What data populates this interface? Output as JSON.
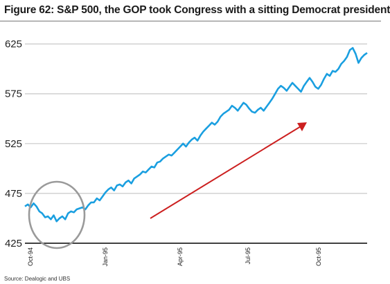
{
  "title": "Figure 62: S&P 500,  the GOP took Congress with a sitting Democrat president",
  "source": "Source:  Dealogic and UBS",
  "colors": {
    "line": "#1a9fe0",
    "grid": "#c8c8c8",
    "axis": "#000000",
    "arrow": "#cc1f1f",
    "circle": "#9a9a9a"
  },
  "chart_data": {
    "type": "line",
    "title": "Figure 62: S&P 500,  the GOP took Congress with a sitting Democrat president",
    "xlabel": "",
    "ylabel": "",
    "x_tick_labels": [
      "Oct-94",
      "Jan-95",
      "Apr-95",
      "Jul-95",
      "Oct-95"
    ],
    "y_ticks": [
      425,
      475,
      525,
      575,
      625
    ],
    "ylim": [
      425,
      640
    ],
    "grid": true,
    "series": [
      {
        "values": [
          462,
          464,
          461,
          465,
          462,
          457,
          455,
          451,
          452,
          449,
          453,
          447,
          450,
          452,
          449,
          455,
          457,
          456,
          459,
          460,
          461,
          459,
          463,
          466,
          466,
          470,
          468,
          472,
          476,
          479,
          481,
          478,
          483,
          484,
          482,
          486,
          488,
          485,
          490,
          492,
          494,
          497,
          496,
          499,
          502,
          501,
          506,
          507,
          510,
          512,
          514,
          513,
          516,
          519,
          522,
          525,
          522,
          526,
          529,
          531,
          528,
          533,
          537,
          540,
          543,
          546,
          544,
          547,
          552,
          555,
          557,
          559,
          563,
          561,
          558,
          562,
          566,
          564,
          560,
          557,
          556,
          559,
          561,
          558,
          562,
          566,
          570,
          575,
          580,
          583,
          581,
          578,
          582,
          586,
          583,
          580,
          577,
          583,
          587,
          591,
          587,
          582,
          580,
          584,
          590,
          595,
          593,
          598,
          597,
          600,
          605,
          608,
          612,
          619,
          621,
          615,
          606,
          611,
          614,
          616
        ]
      }
    ],
    "annotations": [
      {
        "type": "circle",
        "label": ""
      },
      {
        "type": "arrow",
        "label": ""
      }
    ]
  }
}
